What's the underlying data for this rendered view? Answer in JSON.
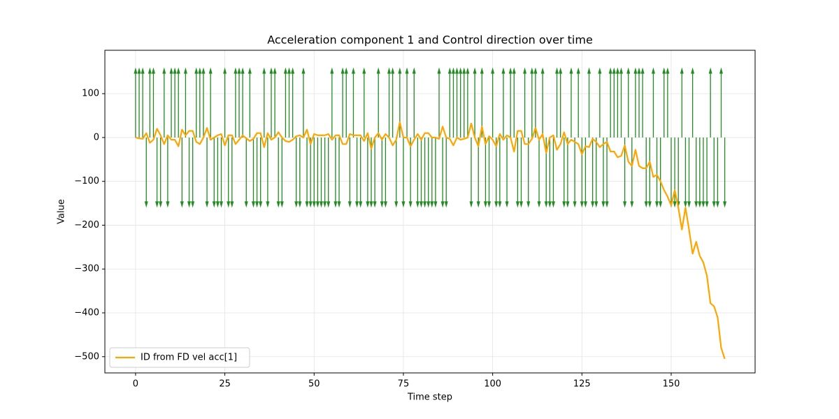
{
  "chart_data": {
    "type": "line",
    "title": "Acceleration component 1 and Control direction over time",
    "x_label": "Time step",
    "y_label": "Value",
    "x": [
      0,
      1,
      2,
      3,
      4,
      5,
      6,
      7,
      8,
      9,
      10,
      11,
      12,
      13,
      14,
      15,
      16,
      17,
      18,
      19,
      20,
      21,
      22,
      23,
      24,
      25,
      26,
      27,
      28,
      29,
      30,
      31,
      32,
      33,
      34,
      35,
      36,
      37,
      38,
      39,
      40,
      41,
      42,
      43,
      44,
      45,
      46,
      47,
      48,
      49,
      50,
      51,
      52,
      53,
      54,
      55,
      56,
      57,
      58,
      59,
      60,
      61,
      62,
      63,
      64,
      65,
      66,
      67,
      68,
      69,
      70,
      71,
      72,
      73,
      74,
      75,
      76,
      77,
      78,
      79,
      80,
      81,
      82,
      83,
      84,
      85,
      86,
      87,
      88,
      89,
      90,
      91,
      92,
      93,
      94,
      95,
      96,
      97,
      98,
      99,
      100,
      101,
      102,
      103,
      104,
      105,
      106,
      107,
      108,
      109,
      110,
      111,
      112,
      113,
      114,
      115,
      116,
      117,
      118,
      119,
      120,
      121,
      122,
      123,
      124,
      125,
      126,
      127,
      128,
      129,
      130,
      131,
      132,
      133,
      134,
      135,
      136,
      137,
      138,
      139,
      140,
      141,
      142,
      143,
      144,
      145,
      146,
      147,
      148,
      149,
      150,
      151,
      152,
      153,
      154,
      155,
      156,
      157,
      158,
      159,
      160,
      161,
      162,
      163,
      164,
      165
    ],
    "series": [
      {
        "name": "ID from FD vel acc[1]",
        "color": "#ffa500",
        "values": [
          0,
          -2,
          -3,
          10,
          -12,
          -5,
          20,
          5,
          -15,
          5,
          -5,
          -5,
          -20,
          18,
          5,
          15,
          15,
          -10,
          -15,
          0,
          22,
          -5,
          0,
          5,
          8,
          -18,
          5,
          5,
          -15,
          -5,
          5,
          -2,
          -8,
          -3,
          10,
          10,
          -22,
          10,
          -5,
          0,
          12,
          0,
          -8,
          -10,
          -5,
          3,
          5,
          0,
          18,
          -15,
          8,
          5,
          5,
          5,
          8,
          -5,
          5,
          5,
          -15,
          -15,
          8,
          5,
          5,
          5,
          -8,
          10,
          -25,
          0,
          10,
          -5,
          8,
          0,
          -18,
          -5,
          35,
          0,
          0,
          -20,
          -5,
          8,
          -5,
          10,
          10,
          0,
          0,
          -3,
          25,
          0,
          -3,
          -18,
          0,
          -5,
          -3,
          0,
          32,
          0,
          -20,
          25,
          -15,
          3,
          -5,
          -20,
          8,
          -5,
          5,
          0,
          -32,
          15,
          15,
          -15,
          -15,
          -3,
          22,
          -5,
          8,
          -35,
          0,
          5,
          -28,
          -15,
          12,
          -15,
          -5,
          -10,
          -15,
          -38,
          -20,
          -22,
          -3,
          -10,
          -22,
          -15,
          -10,
          -32,
          -32,
          -45,
          -42,
          -18,
          -55,
          -65,
          -28,
          -65,
          -70,
          -70,
          -55,
          -90,
          -85,
          -100,
          -120,
          -135,
          -155,
          -120,
          -160,
          -210,
          -160,
          -210,
          -265,
          -238,
          -270,
          -285,
          -315,
          -378,
          -385,
          -410,
          -480,
          -505
        ]
      }
    ],
    "arrows": {
      "color": "#228b22",
      "values": [
        160,
        160,
        160,
        -160,
        160,
        160,
        -160,
        -160,
        160,
        -160,
        160,
        160,
        160,
        -160,
        160,
        -160,
        -160,
        160,
        160,
        160,
        -160,
        160,
        -160,
        -160,
        -160,
        160,
        -160,
        -160,
        160,
        160,
        160,
        -160,
        160,
        -160,
        -160,
        -160,
        160,
        -160,
        160,
        160,
        -160,
        -160,
        160,
        160,
        160,
        -160,
        -160,
        160,
        -160,
        -160,
        -160,
        -160,
        -160,
        -160,
        -160,
        160,
        -160,
        -160,
        160,
        160,
        -160,
        160,
        -160,
        -160,
        160,
        -160,
        -160,
        -160,
        160,
        -160,
        -160,
        160,
        160,
        -160,
        160,
        -160,
        160,
        -160,
        160,
        -160,
        -160,
        -160,
        -160,
        -160,
        -160,
        160,
        -160,
        -160,
        160,
        160,
        160,
        160,
        160,
        160,
        -160,
        160,
        -160,
        160,
        -160,
        -160,
        160,
        -160,
        -160,
        160,
        -160,
        160,
        160,
        -160,
        -160,
        160,
        -160,
        160,
        160,
        -160,
        160,
        -160,
        -160,
        -160,
        160,
        160,
        -160,
        -160,
        160,
        -160,
        160,
        -160,
        -160,
        160,
        -160,
        -160,
        160,
        -160,
        -160,
        160,
        160,
        160,
        160,
        -160,
        160,
        -160,
        160,
        160,
        160,
        -160,
        -160,
        160,
        -160,
        -160,
        160,
        160,
        -160,
        -160,
        -160,
        160,
        -160,
        -160,
        160,
        -160,
        -160,
        -160,
        -160,
        160,
        -160,
        -160,
        160,
        -160
      ]
    },
    "xlim": [
      -8.6,
      173.5
    ],
    "ylim": [
      -537,
      199
    ],
    "xticks": [
      0,
      25,
      50,
      75,
      100,
      125,
      150
    ],
    "yticks": [
      {
        "value": -500,
        "label": "−500"
      },
      {
        "value": -400,
        "label": "−400"
      },
      {
        "value": -300,
        "label": "−300"
      },
      {
        "value": -200,
        "label": "−200"
      },
      {
        "value": -100,
        "label": "−100"
      },
      0,
      100
    ],
    "grid": true,
    "legend": "lower left"
  }
}
